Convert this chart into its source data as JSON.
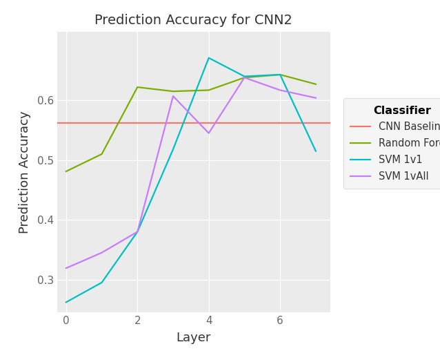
{
  "title": "Prediction Accuracy for CNN2",
  "xlabel": "Layer",
  "ylabel": "Prediction Accuracy",
  "background_color": "#EBEBEB",
  "grid_color": "#FFFFFF",
  "layers": [
    0,
    1,
    2,
    3,
    4,
    5,
    6,
    7
  ],
  "values_rf": [
    0.481,
    0.51,
    0.622,
    0.615,
    0.617,
    0.638,
    0.643,
    0.627
  ],
  "values_svm1v1": [
    0.262,
    0.295,
    0.38,
    0.518,
    0.671,
    0.64,
    0.643,
    0.515
  ],
  "values_svm1vall": [
    0.319,
    0.345,
    0.38,
    0.607,
    0.545,
    0.638,
    0.617,
    0.604
  ],
  "baseline_value": 0.562,
  "color_baseline": "#F8766D",
  "color_rf": "#7CAE00",
  "color_svm1v1": "#00BFC4",
  "color_svm1vall": "#C77CFF",
  "xlim": [
    -0.25,
    7.4
  ],
  "ylim": [
    0.245,
    0.715
  ],
  "xticks": [
    0,
    2,
    4,
    6
  ],
  "yticks": [
    0.3,
    0.4,
    0.5,
    0.6
  ],
  "legend_title": "Classifier",
  "legend_labels": [
    "CNN Baseline",
    "Random Forest",
    "SVM 1v1",
    "SVM 1vAll"
  ],
  "linewidth": 1.6
}
